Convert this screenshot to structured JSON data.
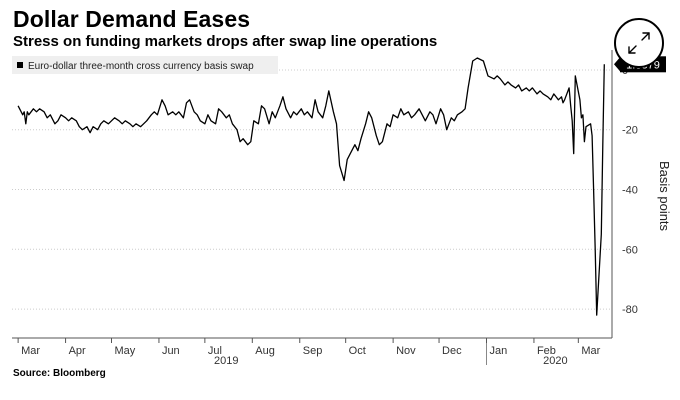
{
  "header": {
    "title": "Dollar Demand Eases",
    "subtitle": "Stress on funding markets drops after swap line operations"
  },
  "footer": {
    "source": "Source: Bloomberg"
  },
  "expand_button": {
    "icon": "expand-arrows-icon"
  },
  "chart_data": {
    "type": "line",
    "series": [
      {
        "name": "Euro-dollar three-month cross currency basis swap",
        "color": "#000000",
        "last_value_label": "1.8879",
        "points": [
          [
            "2019-03-01",
            -12
          ],
          [
            "2019-03-04",
            -15
          ],
          [
            "2019-03-05",
            -14
          ],
          [
            "2019-03-06",
            -18
          ],
          [
            "2019-03-07",
            -14
          ],
          [
            "2019-03-08",
            -15
          ],
          [
            "2019-03-11",
            -13
          ],
          [
            "2019-03-13",
            -14
          ],
          [
            "2019-03-15",
            -13
          ],
          [
            "2019-03-18",
            -14
          ],
          [
            "2019-03-20",
            -16
          ],
          [
            "2019-03-22",
            -15
          ],
          [
            "2019-03-25",
            -18
          ],
          [
            "2019-03-27",
            -17
          ],
          [
            "2019-03-29",
            -15
          ],
          [
            "2019-04-01",
            -16
          ],
          [
            "2019-04-03",
            -17
          ],
          [
            "2019-04-05",
            -16
          ],
          [
            "2019-04-08",
            -17
          ],
          [
            "2019-04-10",
            -19
          ],
          [
            "2019-04-12",
            -20
          ],
          [
            "2019-04-15",
            -19
          ],
          [
            "2019-04-17",
            -21
          ],
          [
            "2019-04-19",
            -19
          ],
          [
            "2019-04-22",
            -20
          ],
          [
            "2019-04-24",
            -18
          ],
          [
            "2019-04-26",
            -17
          ],
          [
            "2019-04-29",
            -18
          ],
          [
            "2019-05-01",
            -17
          ],
          [
            "2019-05-03",
            -16
          ],
          [
            "2019-05-06",
            -17
          ],
          [
            "2019-05-08",
            -18
          ],
          [
            "2019-05-10",
            -17
          ],
          [
            "2019-05-13",
            -18
          ],
          [
            "2019-05-15",
            -19
          ],
          [
            "2019-05-17",
            -18
          ],
          [
            "2019-05-20",
            -19
          ],
          [
            "2019-05-22",
            -18
          ],
          [
            "2019-05-24",
            -17
          ],
          [
            "2019-05-27",
            -15
          ],
          [
            "2019-05-29",
            -14
          ],
          [
            "2019-05-31",
            -15
          ],
          [
            "2019-06-03",
            -10
          ],
          [
            "2019-06-05",
            -12
          ],
          [
            "2019-06-07",
            -15
          ],
          [
            "2019-06-10",
            -14
          ],
          [
            "2019-06-12",
            -15
          ],
          [
            "2019-06-14",
            -14
          ],
          [
            "2019-06-17",
            -16
          ],
          [
            "2019-06-19",
            -11
          ],
          [
            "2019-06-21",
            -10
          ],
          [
            "2019-06-24",
            -14
          ],
          [
            "2019-06-26",
            -15
          ],
          [
            "2019-06-28",
            -17
          ],
          [
            "2019-07-01",
            -18
          ],
          [
            "2019-07-03",
            -15
          ],
          [
            "2019-07-05",
            -17
          ],
          [
            "2019-07-08",
            -18
          ],
          [
            "2019-07-10",
            -13
          ],
          [
            "2019-07-12",
            -14
          ],
          [
            "2019-07-15",
            -16
          ],
          [
            "2019-07-17",
            -15
          ],
          [
            "2019-07-19",
            -18
          ],
          [
            "2019-07-22",
            -20
          ],
          [
            "2019-07-24",
            -24
          ],
          [
            "2019-07-26",
            -23
          ],
          [
            "2019-07-29",
            -25
          ],
          [
            "2019-07-31",
            -24
          ],
          [
            "2019-08-02",
            -17
          ],
          [
            "2019-08-05",
            -18
          ],
          [
            "2019-08-07",
            -12
          ],
          [
            "2019-08-09",
            -13
          ],
          [
            "2019-08-12",
            -18
          ],
          [
            "2019-08-14",
            -14
          ],
          [
            "2019-08-16",
            -16
          ],
          [
            "2019-08-19",
            -12
          ],
          [
            "2019-08-21",
            -9
          ],
          [
            "2019-08-23",
            -13
          ],
          [
            "2019-08-26",
            -16
          ],
          [
            "2019-08-28",
            -14
          ],
          [
            "2019-08-30",
            -15
          ],
          [
            "2019-09-02",
            -13
          ],
          [
            "2019-09-04",
            -15
          ],
          [
            "2019-09-06",
            -14
          ],
          [
            "2019-09-09",
            -16
          ],
          [
            "2019-09-11",
            -10
          ],
          [
            "2019-09-13",
            -14
          ],
          [
            "2019-09-16",
            -16
          ],
          [
            "2019-09-18",
            -12
          ],
          [
            "2019-09-20",
            -7
          ],
          [
            "2019-09-23",
            -14
          ],
          [
            "2019-09-25",
            -18
          ],
          [
            "2019-09-27",
            -32
          ],
          [
            "2019-09-30",
            -37
          ],
          [
            "2019-10-02",
            -30
          ],
          [
            "2019-10-04",
            -28
          ],
          [
            "2019-10-07",
            -25
          ],
          [
            "2019-10-09",
            -27
          ],
          [
            "2019-10-11",
            -23
          ],
          [
            "2019-10-14",
            -18
          ],
          [
            "2019-10-16",
            -14
          ],
          [
            "2019-10-18",
            -16
          ],
          [
            "2019-10-21",
            -22
          ],
          [
            "2019-10-23",
            -25
          ],
          [
            "2019-10-25",
            -24
          ],
          [
            "2019-10-28",
            -18
          ],
          [
            "2019-10-30",
            -19
          ],
          [
            "2019-11-01",
            -15
          ],
          [
            "2019-11-04",
            -16
          ],
          [
            "2019-11-06",
            -13
          ],
          [
            "2019-11-08",
            -15
          ],
          [
            "2019-11-11",
            -14
          ],
          [
            "2019-11-13",
            -16
          ],
          [
            "2019-11-15",
            -15
          ],
          [
            "2019-11-18",
            -13
          ],
          [
            "2019-11-20",
            -15
          ],
          [
            "2019-11-22",
            -17
          ],
          [
            "2019-11-25",
            -14
          ],
          [
            "2019-11-27",
            -15
          ],
          [
            "2019-11-29",
            -18
          ],
          [
            "2019-12-02",
            -13
          ],
          [
            "2019-12-04",
            -15
          ],
          [
            "2019-12-06",
            -20
          ],
          [
            "2019-12-09",
            -16
          ],
          [
            "2019-12-11",
            -17
          ],
          [
            "2019-12-13",
            -15
          ],
          [
            "2019-12-16",
            -14
          ],
          [
            "2019-12-18",
            -13
          ],
          [
            "2019-12-20",
            -6
          ],
          [
            "2019-12-23",
            3
          ],
          [
            "2019-12-26",
            4
          ],
          [
            "2019-12-30",
            3
          ],
          [
            "2020-01-02",
            -2
          ],
          [
            "2020-01-06",
            -3
          ],
          [
            "2020-01-08",
            -2
          ],
          [
            "2020-01-10",
            -3
          ],
          [
            "2020-01-13",
            -5
          ],
          [
            "2020-01-15",
            -4
          ],
          [
            "2020-01-17",
            -5
          ],
          [
            "2020-01-20",
            -6
          ],
          [
            "2020-01-22",
            -5
          ],
          [
            "2020-01-24",
            -7
          ],
          [
            "2020-01-27",
            -6
          ],
          [
            "2020-01-29",
            -7
          ],
          [
            "2020-01-31",
            -6
          ],
          [
            "2020-02-03",
            -8
          ],
          [
            "2020-02-05",
            -7
          ],
          [
            "2020-02-07",
            -8
          ],
          [
            "2020-02-10",
            -9
          ],
          [
            "2020-02-12",
            -10
          ],
          [
            "2020-02-14",
            -8
          ],
          [
            "2020-02-17",
            -10
          ],
          [
            "2020-02-19",
            -9
          ],
          [
            "2020-02-20",
            -11
          ],
          [
            "2020-02-21",
            -10
          ],
          [
            "2020-02-24",
            -6
          ],
          [
            "2020-02-25",
            -12
          ],
          [
            "2020-02-26",
            -17
          ],
          [
            "2020-02-27",
            -28
          ],
          [
            "2020-02-28",
            -2
          ],
          [
            "2020-03-02",
            -10
          ],
          [
            "2020-03-03",
            -16
          ],
          [
            "2020-03-04",
            -15
          ],
          [
            "2020-03-05",
            -24
          ],
          [
            "2020-03-06",
            -19
          ],
          [
            "2020-03-09",
            -18
          ],
          [
            "2020-03-10",
            -22
          ],
          [
            "2020-03-11",
            -40
          ],
          [
            "2020-03-12",
            -60
          ],
          [
            "2020-03-13",
            -82
          ],
          [
            "2020-03-16",
            -55
          ],
          [
            "2020-03-17",
            -25
          ],
          [
            "2020-03-18",
            1.8879
          ]
        ]
      }
    ],
    "x_axis": {
      "type": "date",
      "range": [
        "2019-02-25",
        "2020-03-23"
      ],
      "tick_labels": [
        "Mar",
        "Apr",
        "May",
        "Jun",
        "Jul",
        "Aug",
        "Sep",
        "Oct",
        "Nov",
        "Dec",
        "Jan",
        "Feb",
        "Mar"
      ],
      "tick_dates": [
        "2019-03-01",
        "2019-04-01",
        "2019-05-01",
        "2019-06-01",
        "2019-07-01",
        "2019-08-01",
        "2019-09-01",
        "2019-10-01",
        "2019-11-01",
        "2019-12-01",
        "2020-01-01",
        "2020-02-01",
        "2020-03-01"
      ],
      "year_labels": [
        {
          "label": "2019",
          "date": "2019-07-15"
        },
        {
          "label": "2020",
          "date": "2020-02-15"
        }
      ],
      "year_divider": "2020-01-01"
    },
    "y_axis": {
      "label": "Basis points",
      "position": "right",
      "ylim": [
        -88,
        5
      ],
      "ticks": [
        0,
        -20,
        -40,
        -60,
        -80
      ],
      "tick_labels": [
        "0",
        "-20",
        "-40",
        "-60",
        "-80"
      ]
    },
    "grid": true,
    "grid_color": "#cccccc",
    "legend": {
      "placement": "top-left"
    }
  }
}
